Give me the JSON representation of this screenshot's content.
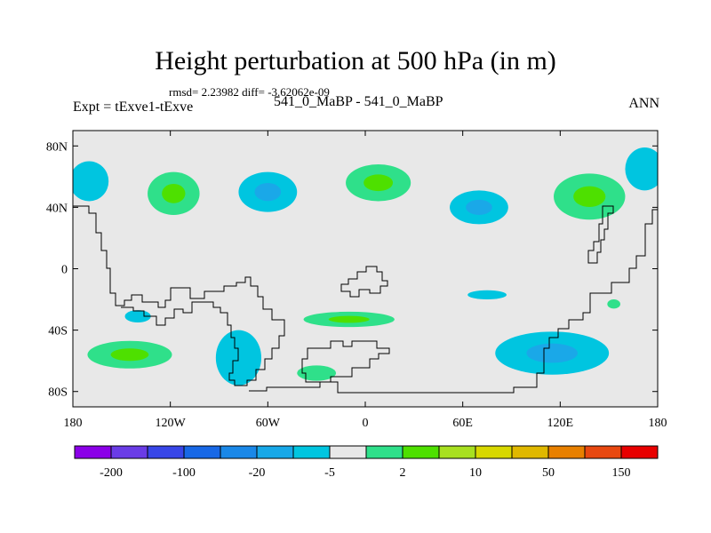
{
  "title": "Height perturbation at 500 hPa (in m)",
  "stats_line": "rmsd= 2.23982  diff= -3.62062e-09",
  "left_label": "Expt = tExve1-tExve",
  "center_label": "541_0_MaBP - 541_0_MaBP",
  "right_label": "ANN",
  "map": {
    "projection": "cylindrical equidistant",
    "lon_range": [
      -180,
      180
    ],
    "lat_range": [
      -90,
      90
    ],
    "lat_ticks": [
      {
        "lat": 80,
        "label": "80N"
      },
      {
        "lat": 40,
        "label": "40N"
      },
      {
        "lat": 0,
        "label": "0"
      },
      {
        "lat": -40,
        "label": "40S"
      },
      {
        "lat": -80,
        "label": "80S"
      }
    ],
    "lon_ticks": [
      {
        "lon": -180,
        "label": "180"
      },
      {
        "lon": -120,
        "label": "120W"
      },
      {
        "lon": -60,
        "label": "60W"
      },
      {
        "lon": 0,
        "label": "0"
      },
      {
        "lon": 60,
        "label": "60E"
      },
      {
        "lon": 120,
        "label": "120E"
      },
      {
        "lon": 180,
        "label": "180"
      }
    ],
    "background_color": "#e8e8e8",
    "anomaly_regions": [
      {
        "name": "n-pacific-east-neg",
        "sign": "neg",
        "lon": -170,
        "lat": 57,
        "rlon": 12,
        "rlat": 13
      },
      {
        "name": "n-america-pos",
        "sign": "pos",
        "lon": -118,
        "lat": 49,
        "rlon": 16,
        "rlat": 14
      },
      {
        "name": "n-atlantic-west-neg",
        "sign": "neg",
        "lon": -60,
        "lat": 50,
        "rlon": 18,
        "rlat": 13
      },
      {
        "name": "n-atlantic-pos",
        "sign": "pos",
        "lon": 8,
        "lat": 56,
        "rlon": 20,
        "rlat": 12
      },
      {
        "name": "eurasia-neg",
        "sign": "neg",
        "lon": 70,
        "lat": 40,
        "rlon": 18,
        "rlat": 11
      },
      {
        "name": "e-asia-pos",
        "sign": "pos",
        "lon": 138,
        "lat": 47,
        "rlon": 22,
        "rlat": 15
      },
      {
        "name": "n-pacific-west-neg",
        "sign": "neg",
        "lon": 172,
        "lat": 65,
        "rlon": 12,
        "rlat": 14
      },
      {
        "name": "s-pacific-neg",
        "sign": "neg",
        "lon": -140,
        "lat": -31,
        "rlon": 8,
        "rlat": 4
      },
      {
        "name": "s-pacific-pos",
        "sign": "pos",
        "lon": -145,
        "lat": -56,
        "rlon": 26,
        "rlat": 9
      },
      {
        "name": "s-america-neg",
        "sign": "neg",
        "lon": -78,
        "lat": -58,
        "rlon": 14,
        "rlat": 18
      },
      {
        "name": "s-atlantic-pos",
        "sign": "pos",
        "lon": -10,
        "lat": -33,
        "rlon": 28,
        "rlat": 5
      },
      {
        "name": "s-atlantic-pos-2",
        "sign": "pos",
        "lon": -30,
        "lat": -68,
        "rlon": 12,
        "rlat": 5
      },
      {
        "name": "indian-ocean-neg",
        "sign": "neg",
        "lon": 75,
        "lat": -17,
        "rlon": 12,
        "rlat": 3
      },
      {
        "name": "s-indian-neg",
        "sign": "neg",
        "lon": 115,
        "lat": -55,
        "rlon": 35,
        "rlat": 14
      },
      {
        "name": "aus-pos",
        "sign": "pos",
        "lon": 153,
        "lat": -23,
        "rlon": 4,
        "rlat": 3
      }
    ],
    "colors": {
      "neg": "#00c5e0",
      "neg_strong": "#1aa8e8",
      "pos": "#2fe08a",
      "pos_strong": "#4ee000"
    }
  },
  "colorbar": {
    "colors": [
      "#8b00e8",
      "#6a3ce6",
      "#3846e8",
      "#1868e6",
      "#1a88e8",
      "#17a8e8",
      "#00c5e0",
      "#e8e8e8",
      "#2fe08a",
      "#4ee000",
      "#a8e020",
      "#d8d800",
      "#e0b800",
      "#e88000",
      "#e84810",
      "#e80000"
    ],
    "labels": [
      {
        "boundary": 1,
        "text": "-200"
      },
      {
        "boundary": 3,
        "text": "-100"
      },
      {
        "boundary": 5,
        "text": "-20"
      },
      {
        "boundary": 7,
        "text": "-5"
      },
      {
        "boundary": 9,
        "text": "2"
      },
      {
        "boundary": 11,
        "text": "10"
      },
      {
        "boundary": 13,
        "text": "50"
      },
      {
        "boundary": 15,
        "text": "150"
      }
    ]
  }
}
